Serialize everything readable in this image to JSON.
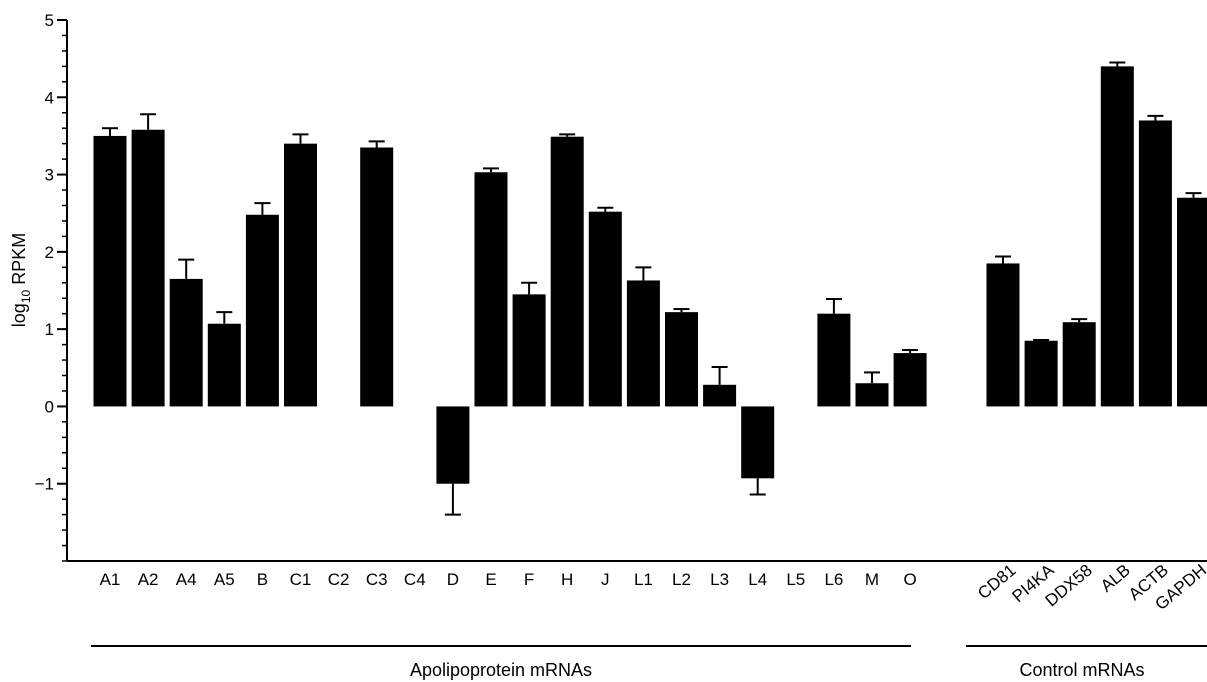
{
  "chart_data": {
    "type": "bar",
    "ylabel_main": "log",
    "ylabel_sub": "10",
    "ylabel_rest": " RPKM",
    "ylim": [
      -2,
      5
    ],
    "yticks": [
      -1,
      0,
      1,
      2,
      3,
      4,
      5
    ],
    "ytick_labels": [
      "−1",
      "0",
      "1",
      "2",
      "3",
      "4",
      "5"
    ],
    "grid": false,
    "bar_color": "#000000",
    "groups": [
      {
        "label": "Apolipoprotein mRNAs",
        "categories": [
          "A1",
          "A2",
          "A4",
          "A5",
          "B",
          "C1",
          "C2",
          "C3",
          "C4",
          "D",
          "E",
          "F",
          "H",
          "J",
          "L1",
          "L2",
          "L3",
          "L4",
          "L5",
          "L6",
          "M",
          "O"
        ],
        "values": [
          3.5,
          3.58,
          1.65,
          1.07,
          2.48,
          3.4,
          null,
          3.35,
          null,
          -1.0,
          3.03,
          1.45,
          3.49,
          2.52,
          1.63,
          1.22,
          0.28,
          -0.93,
          null,
          1.2,
          0.3,
          0.69
        ],
        "errors": [
          0.1,
          0.2,
          0.25,
          0.15,
          0.15,
          0.12,
          null,
          0.08,
          null,
          0.4,
          0.05,
          0.15,
          0.03,
          0.05,
          0.17,
          0.04,
          0.23,
          0.21,
          null,
          0.19,
          0.14,
          0.04
        ]
      },
      {
        "label": "Control mRNAs",
        "categories": [
          "CD81",
          "PI4KA",
          "DDX58",
          "ALB",
          "ACTB",
          "GAPDH"
        ],
        "values": [
          1.85,
          0.85,
          1.09,
          4.4,
          3.7,
          2.7
        ],
        "errors": [
          0.09,
          0.01,
          0.04,
          0.05,
          0.06,
          0.06
        ]
      }
    ]
  }
}
